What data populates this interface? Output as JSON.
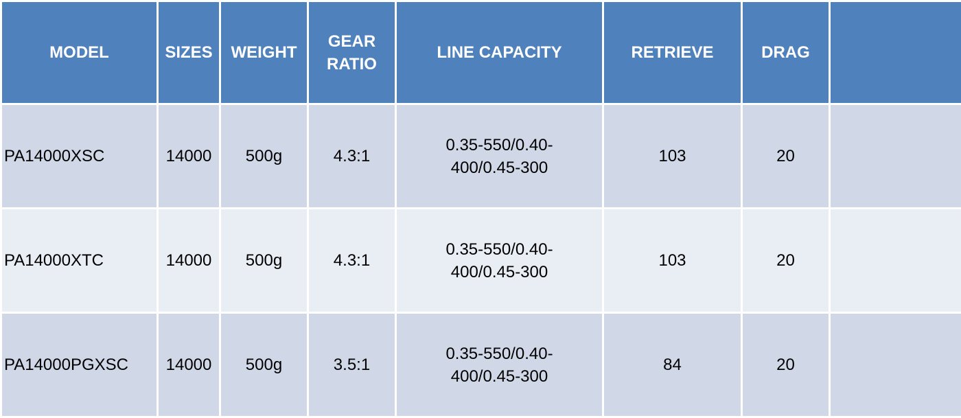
{
  "table": {
    "headers": {
      "model": "MODEL",
      "sizes": "SIZES",
      "weight": "WEIGHT",
      "gear_ratio_line1": "GEAR",
      "gear_ratio_line2": "RATIO",
      "line_capacity": "LINE CAPACITY",
      "retrieve": "RETRIEVE",
      "drag": "DRAG",
      "extra": ""
    },
    "rows": [
      {
        "model": "PA14000XSC",
        "sizes": "14000",
        "weight": "500g",
        "gear_ratio": "4.3:1",
        "line_capacity_line1": "0.35-550/0.40-",
        "line_capacity_line2": "400/0.45-300",
        "retrieve": "103",
        "drag": "20",
        "extra": ""
      },
      {
        "model": "PA14000XTC",
        "sizes": "14000",
        "weight": "500g",
        "gear_ratio": "4.3:1",
        "line_capacity_line1": "0.35-550/0.40-",
        "line_capacity_line2": "400/0.45-300",
        "retrieve": "103",
        "drag": "20",
        "extra": ""
      },
      {
        "model": "PA14000PGXSC",
        "sizes": "14000",
        "weight": "500g",
        "gear_ratio": "3.5:1",
        "line_capacity_line1": "0.35-550/0.40-",
        "line_capacity_line2": "400/0.45-300",
        "retrieve": "84",
        "drag": "20",
        "extra": ""
      }
    ],
    "colors": {
      "header_bg": "#4f81bd",
      "header_text": "#ffffff",
      "row_odd_bg": "#d0d8e8",
      "row_even_bg": "#e9edf4",
      "cell_border": "#ffffff"
    }
  }
}
